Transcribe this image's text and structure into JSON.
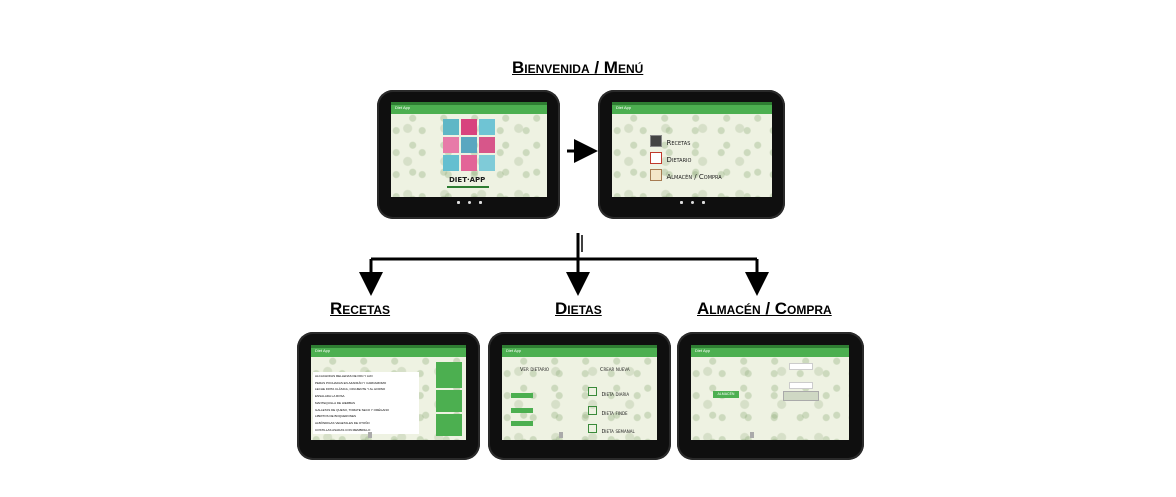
{
  "headings": {
    "top": "Bienvenida / Menú",
    "recetas": "Recetas",
    "dietas": "Dietas",
    "almacen": "Almacén / Compra"
  },
  "app_title": "Diet App",
  "welcome": {
    "logo_text": "DIET·APP"
  },
  "menu": {
    "items": [
      "Recetas",
      "Dietario",
      "Almacén / Compra"
    ]
  },
  "recetas": {
    "list": [
      "ALCACHOFAS RELLENAS DE PAN Y AJO",
      "PERAS POCHADAS EN AZAFRÁN Y CARDAMOMO",
      "LECHE FRITA CLÁSICA, CRUJIENTE Y AL HORNO",
      "ENSALADA LA ROSA",
      "MANTEQUILLA DE HIERBAS",
      "GALLETAS DE QUESO, TOMATE SECO Y ORÉGANO",
      "LIBRITOS DE BOQUERONES",
      "ALBÓNDIGAS VEGETALES DE OTOÑO",
      "COSTILLAS ASADAS CON MEMBRILLO"
    ]
  },
  "dietas": {
    "left_title": "Ver dietario",
    "right_title": "Crear nueva",
    "options": [
      "Dieta diaria",
      "Dieta finde",
      "Dieta semanal"
    ]
  },
  "almacen": {
    "button": "ALMACÉN"
  },
  "colors": {
    "app_green": "#4caf50",
    "status_green": "#2e7d32",
    "tablet": "#0f0f0f"
  }
}
